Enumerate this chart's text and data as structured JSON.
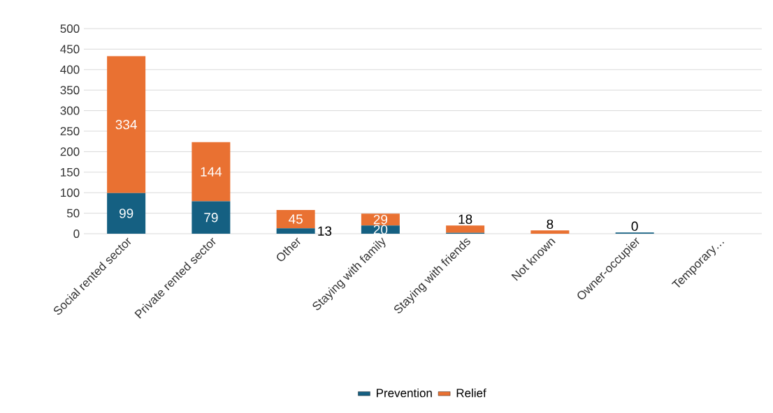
{
  "chart_data": {
    "type": "bar",
    "stacked": true,
    "categories": [
      "Social rented sector",
      "Private rented sector",
      "Other",
      "Staying with family",
      "Staying with friends",
      "Not known",
      "Owner-occupier",
      "Temporary…"
    ],
    "series": [
      {
        "name": "Prevention",
        "color": "#156082",
        "values": [
          99,
          79,
          13,
          20,
          2,
          0,
          3,
          0
        ],
        "value_labels": [
          "99",
          "79",
          "13",
          "20",
          null,
          null,
          null,
          null
        ]
      },
      {
        "name": "Relief",
        "color": "#e97132",
        "values": [
          334,
          144,
          45,
          29,
          18,
          8,
          0,
          0
        ],
        "value_labels": [
          "334",
          "144",
          "45",
          "29",
          "18",
          "8",
          "0",
          null
        ]
      }
    ],
    "ylim": [
      0,
      500
    ],
    "yticks": [
      0,
      50,
      100,
      150,
      200,
      250,
      300,
      350,
      400,
      450,
      500
    ],
    "grid": "y",
    "legend": "bottom"
  }
}
